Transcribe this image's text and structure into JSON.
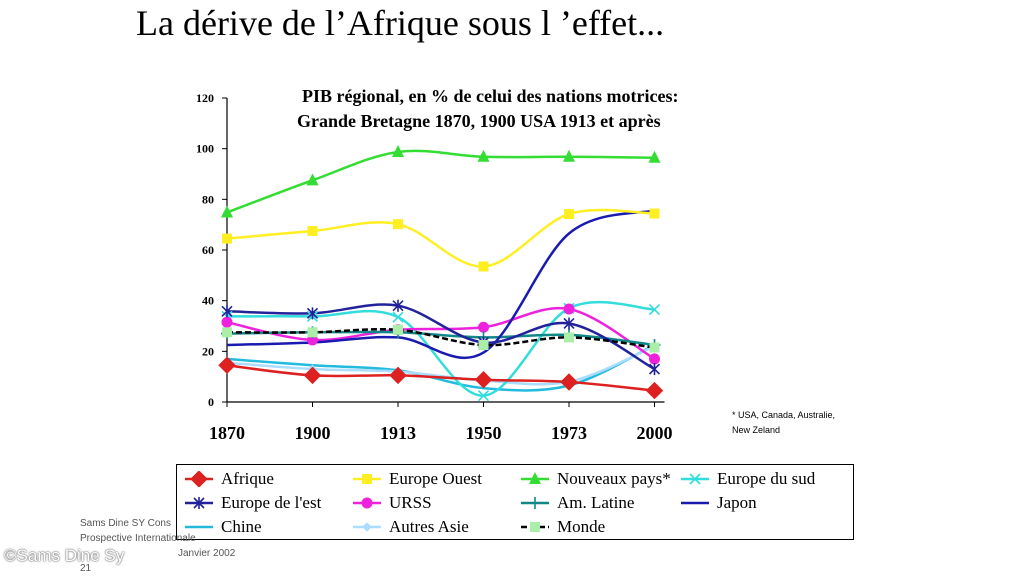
{
  "slide": {
    "title": "La dérive de l’Afrique sous l ’effet...",
    "footer": {
      "author_line": "Sams Dine SY Cons",
      "subtitle_line": "Prospective Internationale",
      "date": "Janvier 2002",
      "page_number": "21",
      "watermark": "©Sams Dine Sy"
    }
  },
  "chart_data": {
    "type": "line",
    "title_line1": "PIB régional, en % de celui des nations motrices:",
    "title_line2": "Grande Bretagne 1870, 1900  USA 1913 et après",
    "note": "* USA, Canada, Australie, New Zeland",
    "categories": [
      "1870",
      "1900",
      "1913",
      "1950",
      "1973",
      "2000"
    ],
    "yticks": [
      "0",
      "20",
      "40",
      "60",
      "80",
      "100",
      "120"
    ],
    "ylim": [
      0,
      120
    ],
    "grid": false,
    "legend_position": "bottom",
    "series": [
      {
        "name": "Afrique",
        "color": "#dd2020",
        "marker": "diamond",
        "values": [
          14.5,
          10.5,
          10.5,
          8.8,
          7.9,
          4.5
        ]
      },
      {
        "name": "Europe Ouest",
        "color": "#ffee22",
        "marker": "square",
        "values": [
          64.5,
          67.5,
          70.2,
          53.5,
          74.2,
          74.4
        ]
      },
      {
        "name": "Nouveaux pays*",
        "color": "#33dd33",
        "marker": "triangle",
        "values": [
          74.8,
          87.5,
          98.7,
          96.8,
          96.8,
          96.4
        ]
      },
      {
        "name": "Europe du sud",
        "color": "#33dddd",
        "marker": "x",
        "values": [
          33.8,
          33.8,
          33.5,
          2.5,
          37.0,
          36.5
        ]
      },
      {
        "name": "Europe de l'est",
        "color": "#22229a",
        "marker": "star",
        "values": [
          35.8,
          35.0,
          38.0,
          23.5,
          31.0,
          13.0
        ]
      },
      {
        "name": "URSS",
        "color": "#ee22dd",
        "marker": "circle",
        "values": [
          31.5,
          24.5,
          28.5,
          29.5,
          36.7,
          17.0
        ]
      },
      {
        "name": "Am. Latine",
        "color": "#118888",
        "marker": "plus",
        "values": [
          27.0,
          27.5,
          27.5,
          25.5,
          26.5,
          22.5
        ]
      },
      {
        "name": "Japon",
        "color": "#1a1ab0",
        "marker": "none",
        "values": [
          22.5,
          23.5,
          25.5,
          19.5,
          66.5,
          75.6
        ]
      },
      {
        "name": "Chine",
        "color": "#22bbdd",
        "marker": "none",
        "values": [
          17.0,
          14.5,
          12.5,
          5.5,
          6.5,
          22.5
        ]
      },
      {
        "name": "Autres Asie",
        "color": "#aaddff",
        "marker": "diamond-small",
        "values": [
          15.5,
          13.0,
          12.0,
          8.5,
          8.0,
          22.0
        ]
      },
      {
        "name": "Monde",
        "color": "#000000",
        "marker": "square-green",
        "values": [
          27.5,
          27.5,
          28.5,
          22.5,
          25.5,
          21.5
        ]
      }
    ]
  }
}
